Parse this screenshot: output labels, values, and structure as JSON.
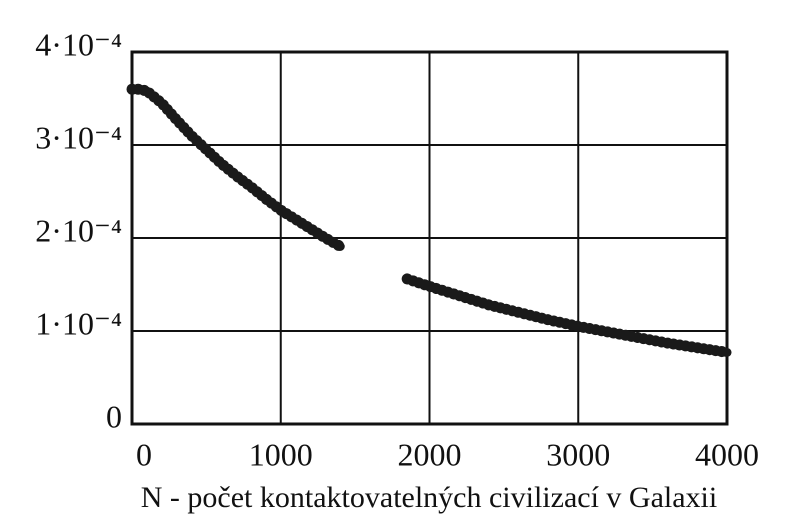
{
  "chart_data": {
    "type": "line",
    "xlabel": "N - počet kontaktovatelných civilizací v Galaxii",
    "x": [
      0,
      50,
      100,
      200,
      300,
      400,
      500,
      600,
      700,
      800,
      900,
      1000,
      1100,
      1200,
      1300,
      1400,
      1600,
      1850,
      2000,
      2200,
      2400,
      2600,
      2800,
      3000,
      3200,
      3400,
      3600,
      3800,
      4000
    ],
    "series": [
      {
        "color": "#1a1a1a",
        "values": [
          0.00036,
          0.00036,
          0.000358,
          0.000345,
          0.000327,
          0.00031,
          0.000295,
          0.00028,
          0.000267,
          0.000255,
          0.000242,
          0.00023,
          0.00022,
          0.00021,
          0.0002,
          0.000191,
          null,
          0.000156,
          0.000148,
          0.000138,
          0.000128,
          0.00012,
          0.000112,
          0.000105,
          9.9e-05,
          9.3e-05,
          8.7e-05,
          8.2e-05,
          7.7e-05
        ]
      }
    ],
    "xlim": [
      0,
      4000
    ],
    "xticks": [
      0,
      1000,
      2000,
      3000,
      4000
    ],
    "ylim": [
      0,
      0.0004
    ],
    "yticks": [
      0,
      {
        "value": 0.0001,
        "label": "1·10⁻⁴"
      },
      {
        "value": 0.0002,
        "label": "2·10⁻⁴"
      },
      {
        "value": 0.0003,
        "label": "3·10⁻⁴"
      },
      {
        "value": 0.0004,
        "label": "4·10⁻⁴"
      }
    ],
    "grid": true
  }
}
